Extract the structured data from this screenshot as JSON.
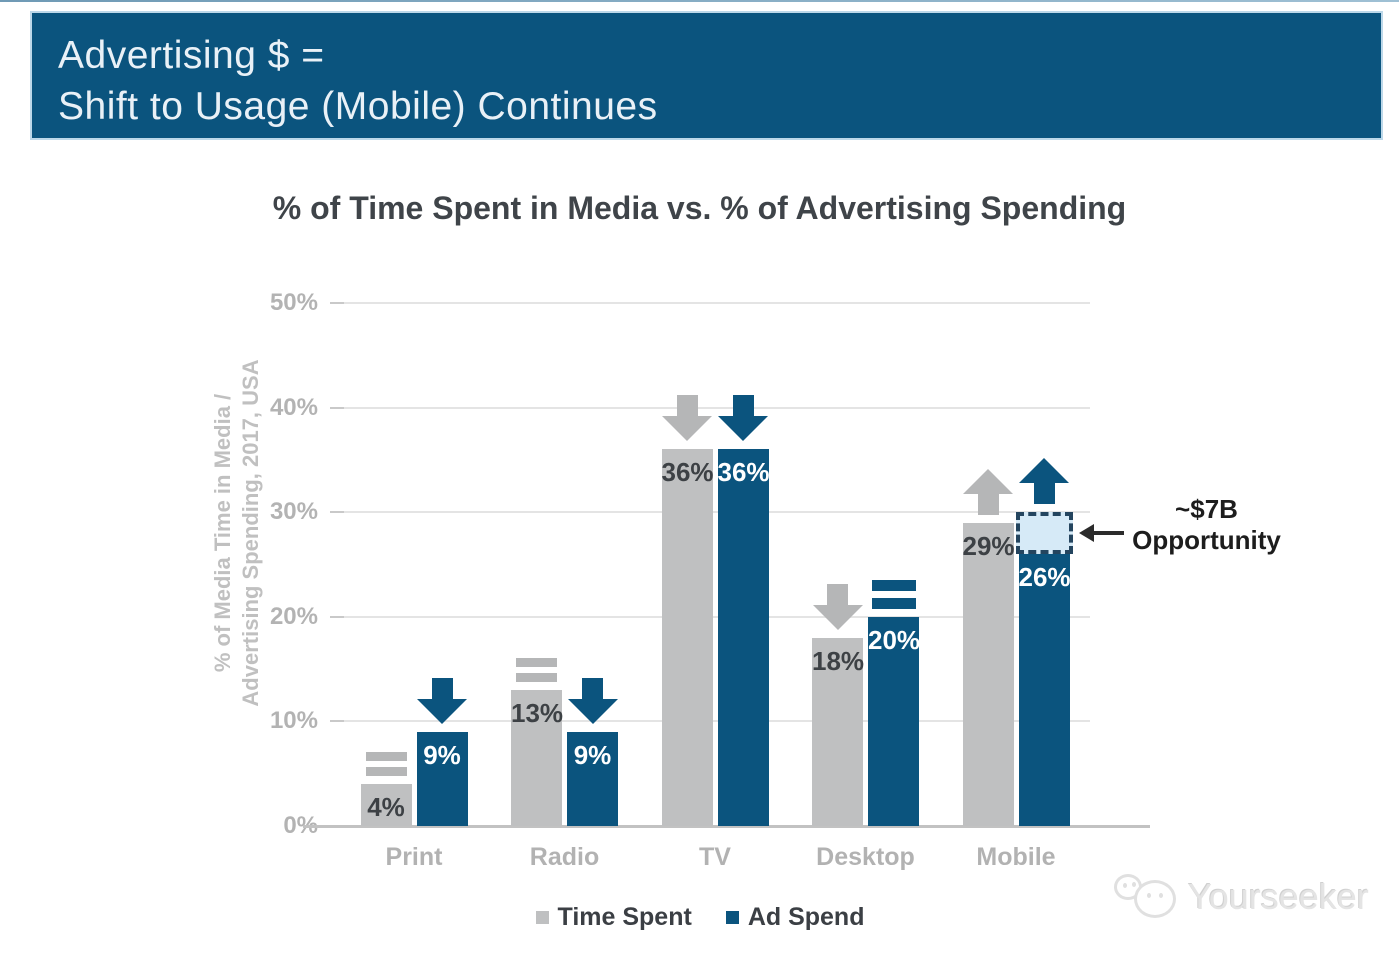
{
  "header": {
    "title_line1": "Advertising $ =",
    "title_line2": "Shift to Usage (Mobile) Continues"
  },
  "chart_data": {
    "type": "bar",
    "title": "% of Time Spent in Media vs. % of Advertising Spending",
    "ylabel_line1": "% of Media Time in Media /",
    "ylabel_line2": "Advertising Spending, 2017, USA",
    "categories": [
      "Print",
      "Radio",
      "TV",
      "Desktop",
      "Mobile"
    ],
    "series": [
      {
        "name": "Time Spent",
        "color": "#bfc0c1",
        "indicator_color": "#b5b6b7",
        "values": [
          4,
          13,
          36,
          18,
          29
        ],
        "labels": [
          "4%",
          "13%",
          "36%",
          "18%",
          "29%"
        ],
        "trends": [
          "equal",
          "equal",
          "down",
          "down",
          "up"
        ]
      },
      {
        "name": "Ad Spend",
        "color": "#0b547e",
        "indicator_color": "#0b547e",
        "values": [
          9,
          9,
          36,
          20,
          26
        ],
        "labels": [
          "9%",
          "9%",
          "36%",
          "20%",
          "26%"
        ],
        "trends": [
          "down",
          "down",
          "down",
          "equal",
          "up"
        ]
      }
    ],
    "ylim": [
      0,
      50
    ],
    "yticks": [
      "0%",
      "10%",
      "20%",
      "30%",
      "40%",
      "50%"
    ],
    "grid": true,
    "legend_position": "bottom",
    "annotation": {
      "line1": "~$7B",
      "line2": "Opportunity",
      "target_category": "Mobile",
      "target_series": "Ad Spend",
      "box_top_value": 30,
      "box_fill": "#d6eaf7",
      "box_border": "#24455f"
    }
  },
  "legend": {
    "items": [
      {
        "label": "Time Spent",
        "color": "#bfc0c1"
      },
      {
        "label": "Ad Spend",
        "color": "#0b547e"
      }
    ]
  },
  "watermark": {
    "text": "Yourseeker"
  }
}
